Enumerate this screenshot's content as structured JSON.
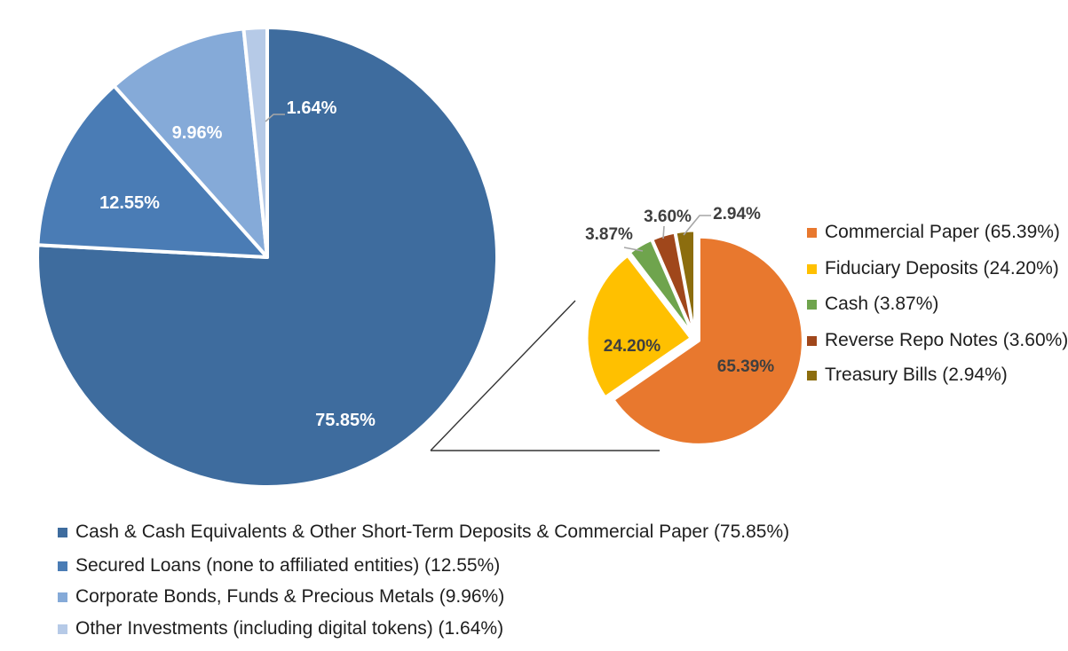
{
  "chart_data": [
    {
      "type": "pie",
      "name": "main-pie",
      "categories": [
        "Cash & Cash Equivalents & Other Short-Term Deposits & Commercial Paper",
        "Secured Loans (none to affiliated entities)",
        "Corporate Bonds, Funds & Precious Metals",
        "Other Investments (including digital tokens)"
      ],
      "values": [
        75.85,
        12.55,
        9.96,
        1.64
      ],
      "labels": [
        "75.85%",
        "12.55%",
        "9.96%",
        "1.64%"
      ],
      "colors": [
        "#3E6C9E",
        "#4A7CB5",
        "#85AAD8",
        "#B6CAE7"
      ],
      "label_color": "#ffffff",
      "start_angle_deg": 0,
      "direction": "clockwise",
      "legend_position": "bottom"
    },
    {
      "type": "pie",
      "name": "secondary-pie",
      "categories": [
        "Commercial Paper",
        "Fiduciary Deposits",
        "Cash",
        "Reverse Repo Notes",
        "Treasury Bills"
      ],
      "values": [
        65.39,
        24.2,
        3.87,
        3.6,
        2.94
      ],
      "labels": [
        "65.39%",
        "24.20%",
        "3.87%",
        "3.60%",
        "2.94%"
      ],
      "colors": [
        "#E8782E",
        "#FFC000",
        "#6FA44D",
        "#A0471B",
        "#8C6D0E"
      ],
      "label_color": "#3f3f3f",
      "start_angle_deg": 0,
      "direction": "clockwise",
      "legend_position": "right"
    }
  ],
  "legends": {
    "right": {
      "items": [
        {
          "label": "Commercial Paper (65.39%)"
        },
        {
          "label": "Fiduciary Deposits (24.20%)"
        },
        {
          "label": "Cash (3.87%)"
        },
        {
          "label": "Reverse Repo Notes (3.60%)"
        },
        {
          "label": "Treasury Bills (2.94%)"
        }
      ]
    },
    "bottom": {
      "items": [
        {
          "label": "Cash & Cash Equivalents & Other Short-Term Deposits & Commercial Paper (75.85%)"
        },
        {
          "label": "Secured Loans (none to affiliated entities) (12.55%)"
        },
        {
          "label": "Corporate Bonds, Funds & Precious Metals (9.96%)"
        },
        {
          "label": "Other Investments (including digital tokens) (1.64%)"
        }
      ]
    }
  },
  "style": {
    "background": "#ffffff",
    "leader_line_color": "#A6A6A6",
    "connector_line_color": "#333333"
  }
}
